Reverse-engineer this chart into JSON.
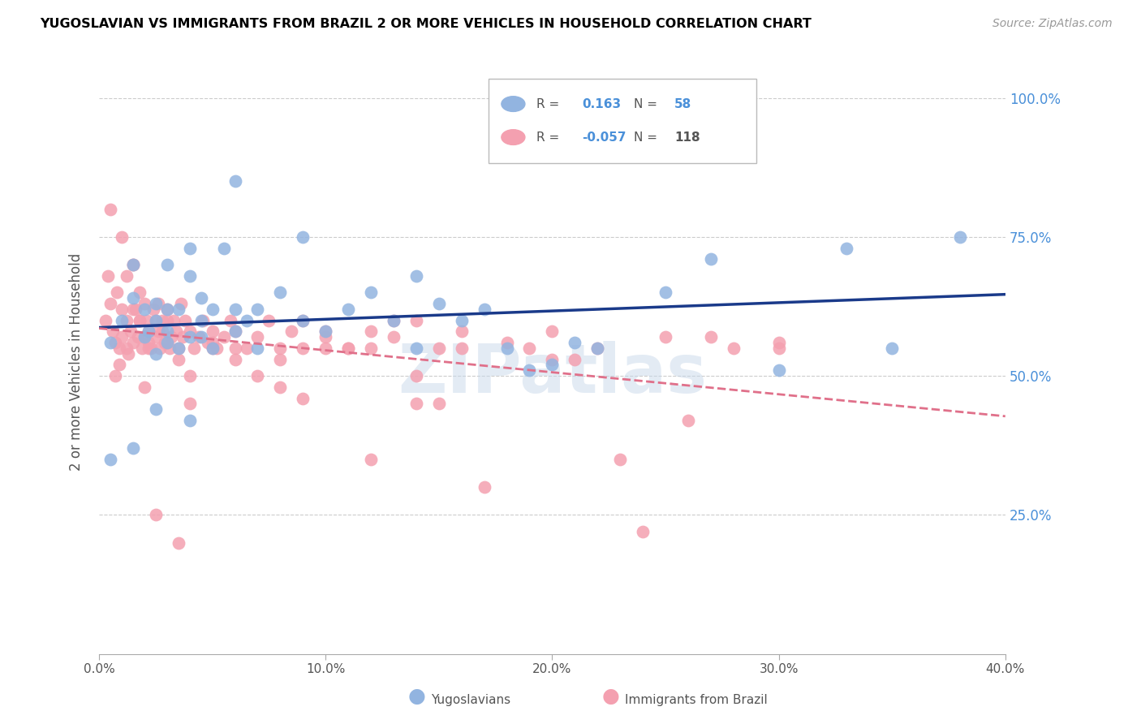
{
  "title": "YUGOSLAVIAN VS IMMIGRANTS FROM BRAZIL 2 OR MORE VEHICLES IN HOUSEHOLD CORRELATION CHART",
  "source": "Source: ZipAtlas.com",
  "ylabel": "2 or more Vehicles in Household",
  "ytick_labels": [
    "100.0%",
    "75.0%",
    "50.0%",
    "25.0%"
  ],
  "ytick_values": [
    1.0,
    0.75,
    0.5,
    0.25
  ],
  "xlim": [
    0.0,
    0.4
  ],
  "ylim": [
    0.0,
    1.05
  ],
  "blue_color": "#92b4e0",
  "pink_color": "#f4a0b0",
  "blue_line_color": "#1a3a8a",
  "pink_line_color": "#e0708a",
  "watermark": "ZIPatlas",
  "legend_r_blue_val": "0.163",
  "legend_n_blue_val": "58",
  "legend_r_pink_val": "-0.057",
  "legend_n_pink_val": "118",
  "blue_scatter_x": [
    0.005,
    0.01,
    0.015,
    0.015,
    0.02,
    0.02,
    0.022,
    0.025,
    0.025,
    0.025,
    0.03,
    0.03,
    0.03,
    0.03,
    0.035,
    0.035,
    0.04,
    0.04,
    0.04,
    0.045,
    0.045,
    0.045,
    0.05,
    0.05,
    0.055,
    0.06,
    0.06,
    0.065,
    0.07,
    0.07,
    0.08,
    0.09,
    0.1,
    0.11,
    0.12,
    0.13,
    0.14,
    0.15,
    0.16,
    0.17,
    0.18,
    0.19,
    0.2,
    0.21,
    0.22,
    0.25,
    0.27,
    0.3,
    0.33,
    0.35,
    0.38,
    0.005,
    0.015,
    0.025,
    0.04,
    0.06,
    0.09,
    0.14
  ],
  "blue_scatter_y": [
    0.56,
    0.6,
    0.7,
    0.64,
    0.57,
    0.62,
    0.58,
    0.54,
    0.6,
    0.63,
    0.56,
    0.58,
    0.62,
    0.7,
    0.55,
    0.62,
    0.57,
    0.68,
    0.73,
    0.57,
    0.6,
    0.64,
    0.55,
    0.62,
    0.73,
    0.58,
    0.62,
    0.6,
    0.55,
    0.62,
    0.65,
    0.6,
    0.58,
    0.62,
    0.65,
    0.6,
    0.55,
    0.63,
    0.6,
    0.62,
    0.55,
    0.51,
    0.52,
    0.56,
    0.55,
    0.65,
    0.71,
    0.51,
    0.73,
    0.55,
    0.75,
    0.35,
    0.37,
    0.44,
    0.42,
    0.85,
    0.75,
    0.68
  ],
  "pink_scatter_x": [
    0.003,
    0.005,
    0.006,
    0.007,
    0.008,
    0.009,
    0.01,
    0.01,
    0.012,
    0.012,
    0.013,
    0.014,
    0.015,
    0.015,
    0.016,
    0.017,
    0.018,
    0.018,
    0.019,
    0.02,
    0.02,
    0.021,
    0.022,
    0.022,
    0.023,
    0.024,
    0.025,
    0.025,
    0.026,
    0.027,
    0.028,
    0.028,
    0.029,
    0.03,
    0.031,
    0.032,
    0.033,
    0.034,
    0.035,
    0.036,
    0.037,
    0.038,
    0.04,
    0.042,
    0.044,
    0.046,
    0.048,
    0.05,
    0.052,
    0.055,
    0.058,
    0.06,
    0.065,
    0.07,
    0.075,
    0.08,
    0.085,
    0.09,
    0.1,
    0.11,
    0.12,
    0.13,
    0.14,
    0.15,
    0.16,
    0.18,
    0.2,
    0.22,
    0.25,
    0.28,
    0.3,
    0.004,
    0.007,
    0.009,
    0.012,
    0.015,
    0.018,
    0.022,
    0.026,
    0.03,
    0.035,
    0.04,
    0.05,
    0.06,
    0.08,
    0.09,
    0.1,
    0.12,
    0.14,
    0.16,
    0.2,
    0.23,
    0.26,
    0.3,
    0.01,
    0.02,
    0.03,
    0.04,
    0.05,
    0.06,
    0.07,
    0.08,
    0.09,
    0.1,
    0.11,
    0.12,
    0.13,
    0.14,
    0.15,
    0.17,
    0.19,
    0.21,
    0.24,
    0.27,
    0.005,
    0.015,
    0.025,
    0.035
  ],
  "pink_scatter_y": [
    0.6,
    0.63,
    0.58,
    0.56,
    0.65,
    0.55,
    0.62,
    0.57,
    0.6,
    0.68,
    0.54,
    0.58,
    0.7,
    0.56,
    0.62,
    0.57,
    0.65,
    0.6,
    0.55,
    0.57,
    0.63,
    0.6,
    0.58,
    0.56,
    0.55,
    0.62,
    0.57,
    0.6,
    0.63,
    0.55,
    0.58,
    0.6,
    0.56,
    0.62,
    0.55,
    0.57,
    0.6,
    0.58,
    0.55,
    0.63,
    0.57,
    0.6,
    0.58,
    0.55,
    0.57,
    0.6,
    0.56,
    0.58,
    0.55,
    0.57,
    0.6,
    0.58,
    0.55,
    0.57,
    0.6,
    0.55,
    0.58,
    0.6,
    0.57,
    0.55,
    0.58,
    0.57,
    0.6,
    0.55,
    0.58,
    0.56,
    0.53,
    0.55,
    0.57,
    0.55,
    0.56,
    0.68,
    0.5,
    0.52,
    0.55,
    0.62,
    0.6,
    0.55,
    0.58,
    0.56,
    0.53,
    0.5,
    0.56,
    0.55,
    0.53,
    0.55,
    0.58,
    0.55,
    0.5,
    0.55,
    0.58,
    0.35,
    0.42,
    0.55,
    0.75,
    0.48,
    0.6,
    0.45,
    0.55,
    0.53,
    0.5,
    0.48,
    0.46,
    0.55,
    0.55,
    0.35,
    0.6,
    0.45,
    0.45,
    0.3,
    0.55,
    0.53,
    0.22,
    0.57,
    0.8,
    0.7,
    0.25,
    0.2
  ]
}
